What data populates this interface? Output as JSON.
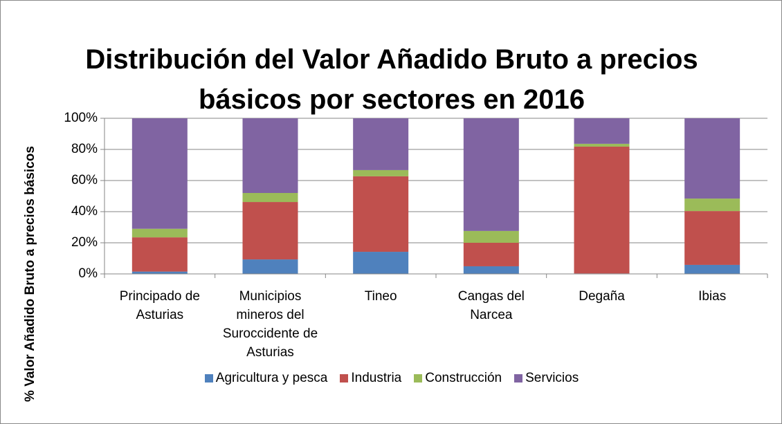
{
  "chart_data": {
    "type": "stacked_bar",
    "title": "Distribución del Valor Añadido Bruto a precios básicos por sectores en 2016",
    "y_label": "% Valor Añadido Bruto a precios básicos",
    "categories": [
      "Principado de Asturias",
      "Municipios mineros del Suroccidente de Asturias",
      "Tineo",
      "Cangas del Narcea",
      "Degaña",
      "Ibias"
    ],
    "series": [
      {
        "name": "Agricultura y pesca",
        "color": "#4f81bd",
        "values": [
          1.5,
          9.3,
          14.2,
          4.9,
          0.3,
          5.8
        ]
      },
      {
        "name": "Industria",
        "color": "#c0504d",
        "values": [
          22,
          36.9,
          48.5,
          15.1,
          81.5,
          34.6
        ]
      },
      {
        "name": "Construcción",
        "color": "#9bbb59",
        "values": [
          5.5,
          5.8,
          4,
          7.6,
          1.8,
          8
        ]
      },
      {
        "name": "Servicios",
        "color": "#8064a2",
        "values": [
          71,
          48,
          33.3,
          72.4,
          16.4,
          51.6
        ]
      }
    ],
    "ylim": [
      0,
      100
    ],
    "yticks": [
      {
        "value": 0,
        "label": "0%"
      },
      {
        "value": 20,
        "label": "20%"
      },
      {
        "value": 40,
        "label": "40%"
      },
      {
        "value": 60,
        "label": "60%"
      },
      {
        "value": 80,
        "label": "80%"
      },
      {
        "value": 100,
        "label": "100%"
      }
    ],
    "grid": true,
    "legend": "bottom"
  }
}
